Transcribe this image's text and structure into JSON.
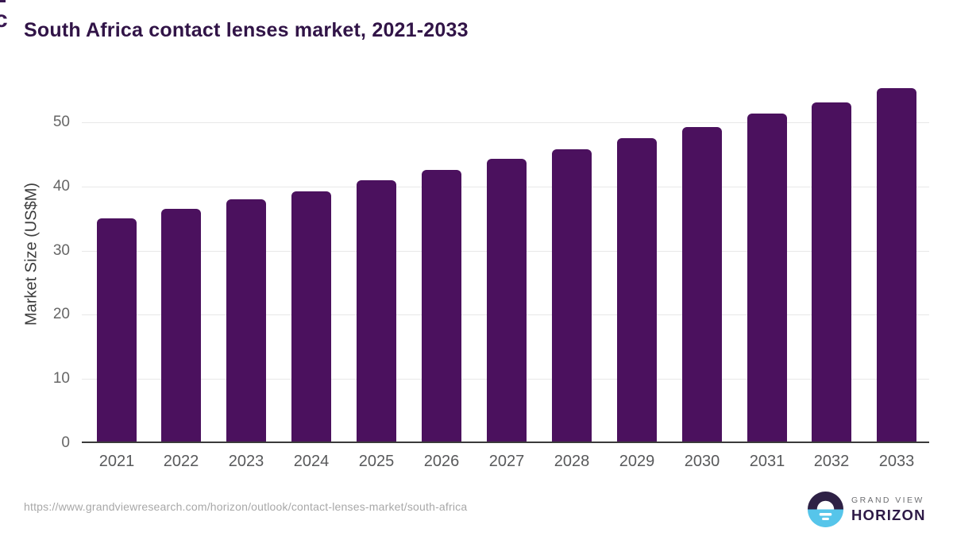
{
  "title": "South Africa contact lenses market, 2021-2033",
  "chart_data": {
    "type": "bar",
    "categories": [
      "2021",
      "2022",
      "2023",
      "2024",
      "2025",
      "2026",
      "2027",
      "2028",
      "2029",
      "2030",
      "2031",
      "2032",
      "2033"
    ],
    "values": [
      35.0,
      36.5,
      38.0,
      39.2,
      41.0,
      42.6,
      44.3,
      45.8,
      47.5,
      49.3,
      51.4,
      53.1,
      55.3
    ],
    "title": "South Africa contact lenses market, 2021-2033",
    "xlabel": "",
    "ylabel": "Market Size (US$M)",
    "yticks": [
      0,
      10,
      20,
      30,
      40,
      50
    ],
    "ylim": [
      0,
      58
    ],
    "grid": true,
    "legend": false,
    "bar_color": "#4b115e"
  },
  "footer": {
    "source_url": "https://www.grandviewresearch.com/horizon/outlook/contact-lenses-market/south-africa"
  },
  "logo": {
    "top_text": "GRAND VIEW",
    "bottom_text": "HORIZON",
    "icon": "horizon-sunrise-icon",
    "colors": {
      "dark": "#2e2145",
      "blue": "#56c5ea",
      "white": "#ffffff",
      "text_gray": "#6d6e71",
      "text_purple": "#2e1a47"
    }
  },
  "colors": {
    "bar": "#4b115e",
    "title_text": "#311447",
    "axis_line": "#3a3a3a",
    "gridline": "#e8e8e8",
    "y_tick_label": "#666666",
    "x_tick_label": "#58595b",
    "url_text": "#a8a8a8"
  },
  "artifact": {
    "glyph": "c"
  }
}
